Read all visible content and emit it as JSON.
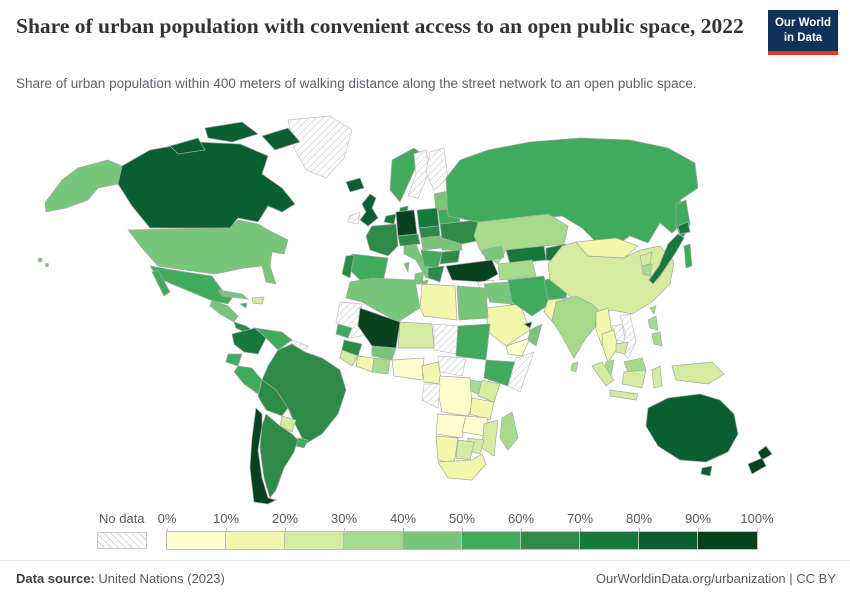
{
  "header": {
    "title": "Share of urban population with convenient access to an open public space, 2022",
    "subtitle": "Share of urban population within 400 meters of walking distance along the street network to an open public space.",
    "logo": {
      "line1": "Our World",
      "line2": "in Data",
      "bg_color": "#103159",
      "accent_color": "#e5362a"
    }
  },
  "footer": {
    "source_label": "Data source:",
    "source_value": " United Nations (2023)",
    "rights": "OurWorldinData.org/urbanization | CC BY"
  },
  "chart_data": {
    "type": "choropleth",
    "title": "Share of urban population with convenient access to an open public space, 2022",
    "unit": "%",
    "legend": {
      "no_data_label": "No data",
      "tick_labels": [
        "0%",
        "10%",
        "20%",
        "30%",
        "40%",
        "50%",
        "60%",
        "70%",
        "80%",
        "90%",
        "100%"
      ],
      "bin_colors": [
        "#fdfdce",
        "#f1f8ab",
        "#d4ec9f",
        "#a6db8c",
        "#78c679",
        "#41ab5d",
        "#2e8b47",
        "#15793b",
        "#0b5e31",
        "#07421f"
      ],
      "no_data_pattern": "gray-diagonal-hatch"
    },
    "countries": {
      "canada": {
        "label": "Canada",
        "value": "80-90%",
        "fill": "#0b5e31"
      },
      "alaska": {
        "label": "United States (Alaska)",
        "value": "40-50%",
        "fill": "#78c679"
      },
      "usa": {
        "label": "United States",
        "value": "40-50%",
        "fill": "#78c679"
      },
      "greenland": {
        "label": "Greenland",
        "value": "No data",
        "fill": "hatch"
      },
      "iceland": {
        "label": "Iceland",
        "value": "80-90%",
        "fill": "#0b5e31"
      },
      "mexico": {
        "label": "Mexico",
        "value": "50-60%",
        "fill": "#41ab5d"
      },
      "central-america": {
        "label": "Central America",
        "value": "40-50%",
        "fill": "#78c679"
      },
      "costa-rica-panama": {
        "label": "Costa Rica / Panama",
        "value": "60-70%",
        "fill": "#2e8b47"
      },
      "cuba": {
        "label": "Cuba",
        "value": "40-50%",
        "fill": "#78c679"
      },
      "hispaniola": {
        "label": "Haiti / Dominican Republic",
        "value": "20-30%",
        "fill": "#d4ec9f"
      },
      "jamaica": {
        "label": "Jamaica",
        "value": "50-60%",
        "fill": "#41ab5d"
      },
      "colombia": {
        "label": "Colombia",
        "value": "70-80%",
        "fill": "#15793b"
      },
      "venezuela": {
        "label": "Venezuela",
        "value": "50-60%",
        "fill": "#41ab5d"
      },
      "guyanas": {
        "label": "Guyana / Suriname",
        "value": "No data",
        "fill": "hatch"
      },
      "ecuador": {
        "label": "Ecuador",
        "value": "50-60%",
        "fill": "#41ab5d"
      },
      "peru": {
        "label": "Peru",
        "value": "50-60%",
        "fill": "#41ab5d"
      },
      "brazil": {
        "label": "Brazil",
        "value": "60-70%",
        "fill": "#2e8b47"
      },
      "bolivia": {
        "label": "Bolivia",
        "value": "60-70%",
        "fill": "#2e8b47"
      },
      "paraguay": {
        "label": "Paraguay",
        "value": "20-30%",
        "fill": "#d4ec9f"
      },
      "uruguay": {
        "label": "Uruguay",
        "value": "50-60%",
        "fill": "#41ab5d"
      },
      "argentina": {
        "label": "Argentina",
        "value": "60-70%",
        "fill": "#2e8b47"
      },
      "chile": {
        "label": "Chile",
        "value": "90-100%",
        "fill": "#07421f"
      },
      "uk": {
        "label": "United Kingdom",
        "value": "80-90%",
        "fill": "#0b5e31"
      },
      "ireland": {
        "label": "Ireland",
        "value": "No data",
        "fill": "hatch"
      },
      "norway": {
        "label": "Norway",
        "value": "50-60%",
        "fill": "#41ab5d"
      },
      "sweden": {
        "label": "Sweden",
        "value": "No data",
        "fill": "hatch"
      },
      "finland": {
        "label": "Finland",
        "value": "No data",
        "fill": "hatch"
      },
      "denmark": {
        "label": "Denmark",
        "value": "60-70%",
        "fill": "#2e8b47"
      },
      "baltics": {
        "label": "Baltic states",
        "value": "40-50%",
        "fill": "#78c679"
      },
      "belarus": {
        "label": "Belarus",
        "value": "50-60%",
        "fill": "#41ab5d"
      },
      "benelux": {
        "label": "Netherlands / Belgium",
        "value": "70-80%",
        "fill": "#15793b"
      },
      "germany": {
        "label": "Germany",
        "value": "90-100%",
        "fill": "#07421f"
      },
      "poland": {
        "label": "Poland",
        "value": "70-80%",
        "fill": "#15793b"
      },
      "france": {
        "label": "France",
        "value": "60-70%",
        "fill": "#2e8b47"
      },
      "spain": {
        "label": "Spain",
        "value": "50-60%",
        "fill": "#41ab5d"
      },
      "portugal": {
        "label": "Portugal",
        "value": "60-70%",
        "fill": "#2e8b47"
      },
      "alpine": {
        "label": "Switzerland / Austria",
        "value": "60-70%",
        "fill": "#2e8b47"
      },
      "czech-slovakia": {
        "label": "Czechia / Slovakia",
        "value": "60-70%",
        "fill": "#2e8b47"
      },
      "italy": {
        "label": "Italy",
        "value": "40-50%",
        "fill": "#78c679"
      },
      "hungary": {
        "label": "Hungary",
        "value": "40-50%",
        "fill": "#78c679"
      },
      "romania": {
        "label": "Romania",
        "value": "40-50%",
        "fill": "#78c679"
      },
      "balkans": {
        "label": "Balkans",
        "value": "50-60%",
        "fill": "#41ab5d"
      },
      "greece": {
        "label": "Greece",
        "value": "60-70%",
        "fill": "#2e8b47"
      },
      "bulgaria": {
        "label": "Bulgaria",
        "value": "60-70%",
        "fill": "#2e8b47"
      },
      "ukraine": {
        "label": "Ukraine",
        "value": "60-70%",
        "fill": "#2e8b47"
      },
      "russia": {
        "label": "Russia",
        "value": "50-60%",
        "fill": "#41ab5d"
      },
      "turkey": {
        "label": "Turkey",
        "value": "90-100%",
        "fill": "#07421f"
      },
      "caucasus": {
        "label": "Caucasus",
        "value": "40-50%",
        "fill": "#78c679"
      },
      "syria": {
        "label": "Syria",
        "value": "No data",
        "fill": "hatch"
      },
      "israel": {
        "label": "Israel",
        "value": "90-100%",
        "fill": "#07421f"
      },
      "jordan": {
        "label": "Jordan",
        "value": "30-40%",
        "fill": "#a6db8c"
      },
      "iraq": {
        "label": "Iraq",
        "value": "40-50%",
        "fill": "#78c679"
      },
      "saudi": {
        "label": "Saudi Arabia",
        "value": "10-20%",
        "fill": "#f1f8ab"
      },
      "yemen": {
        "label": "Yemen",
        "value": "0-10%",
        "fill": "#fdfdce"
      },
      "oman": {
        "label": "Oman",
        "value": "40-50%",
        "fill": "#78c679"
      },
      "uae": {
        "label": "United Arab Emirates",
        "value": "90-100%",
        "fill": "#07421f"
      },
      "kuwait": {
        "label": "Kuwait",
        "value": "60-70%",
        "fill": "#2e8b47"
      },
      "iran": {
        "label": "Iran",
        "value": "50-60%",
        "fill": "#41ab5d"
      },
      "afghanistan": {
        "label": "Afghanistan",
        "value": "50-60%",
        "fill": "#41ab5d"
      },
      "pakistan": {
        "label": "Pakistan",
        "value": "10-20%",
        "fill": "#f1f8ab"
      },
      "turkmenistan": {
        "label": "Turkmenistan",
        "value": "30-40%",
        "fill": "#a6db8c"
      },
      "uzbekistan": {
        "label": "Uzbekistan",
        "value": "70-80%",
        "fill": "#15793b"
      },
      "kyrgyz-tajik": {
        "label": "Kyrgyzstan / Tajikistan",
        "value": "70-80%",
        "fill": "#15793b"
      },
      "kazakhstan": {
        "label": "Kazakhstan",
        "value": "30-40%",
        "fill": "#a6db8c"
      },
      "mongolia": {
        "label": "Mongolia",
        "value": "10-20%",
        "fill": "#f1f8ab"
      },
      "china": {
        "label": "China",
        "value": "20-30%",
        "fill": "#d4ec9f"
      },
      "nkorea": {
        "label": "North Korea",
        "value": "20-30%",
        "fill": "#d4ec9f"
      },
      "skorea": {
        "label": "South Korea",
        "value": "30-40%",
        "fill": "#a6db8c"
      },
      "japan": {
        "label": "Japan",
        "value": "70-80%",
        "fill": "#15793b"
      },
      "taiwan": {
        "label": "Taiwan",
        "value": "30-40%",
        "fill": "#a6db8c"
      },
      "india": {
        "label": "India",
        "value": "30-40%",
        "fill": "#a6db8c"
      },
      "bangladesh": {
        "label": "Bangladesh",
        "value": "60-70%",
        "fill": "#2e8b47"
      },
      "srilanka": {
        "label": "Sri Lanka",
        "value": "30-40%",
        "fill": "#a6db8c"
      },
      "myanmar": {
        "label": "Myanmar",
        "value": "10-20%",
        "fill": "#f1f8ab"
      },
      "thailand": {
        "label": "Thailand",
        "value": "10-20%",
        "fill": "#f1f8ab"
      },
      "laos": {
        "label": "Laos",
        "value": "No data",
        "fill": "hatch"
      },
      "vietnam": {
        "label": "Vietnam",
        "value": "No data",
        "fill": "hatch"
      },
      "cambodia": {
        "label": "Cambodia",
        "value": "20-30%",
        "fill": "#d4ec9f"
      },
      "malaysia": {
        "label": "Malaysia",
        "value": "30-40%",
        "fill": "#a6db8c"
      },
      "indonesia": {
        "label": "Indonesia",
        "value": "20-30%",
        "fill": "#d4ec9f"
      },
      "philippines": {
        "label": "Philippines",
        "value": "30-40%",
        "fill": "#a6db8c"
      },
      "png": {
        "label": "New Guinea",
        "value": "20-30%",
        "fill": "#d4ec9f"
      },
      "australia": {
        "label": "Australia",
        "value": "80-90%",
        "fill": "#0b5e31"
      },
      "nz": {
        "label": "New Zealand",
        "value": "90-100%",
        "fill": "#07421f"
      },
      "morocco": {
        "label": "Morocco",
        "value": "40-50%",
        "fill": "#78c679"
      },
      "wsahara-mauritania": {
        "label": "W. Sahara / Mauritania",
        "value": "No data",
        "fill": "hatch"
      },
      "algeria": {
        "label": "Algeria",
        "value": "40-50%",
        "fill": "#78c679"
      },
      "tunisia": {
        "label": "Tunisia",
        "value": "40-50%",
        "fill": "#78c679"
      },
      "libya": {
        "label": "Libya",
        "value": "10-20%",
        "fill": "#f1f8ab"
      },
      "egypt": {
        "label": "Egypt",
        "value": "40-50%",
        "fill": "#78c679"
      },
      "mali": {
        "label": "Mali",
        "value": "90-100%",
        "fill": "#07421f"
      },
      "niger": {
        "label": "Niger",
        "value": "20-30%",
        "fill": "#d4ec9f"
      },
      "chad": {
        "label": "Chad",
        "value": "No data",
        "fill": "hatch"
      },
      "sudan": {
        "label": "Sudan",
        "value": "50-60%",
        "fill": "#41ab5d"
      },
      "senegal": {
        "label": "Senegal",
        "value": "50-60%",
        "fill": "#41ab5d"
      },
      "guinea": {
        "label": "Guinea",
        "value": "60-70%",
        "fill": "#2e8b47"
      },
      "sierra-liberia": {
        "label": "Sierra Leone / Liberia",
        "value": "20-30%",
        "fill": "#d4ec9f"
      },
      "ivorycoast": {
        "label": "Côte d'Ivoire",
        "value": "10-20%",
        "fill": "#f1f8ab"
      },
      "ghana-benin": {
        "label": "Ghana / Togo / Benin",
        "value": "30-40%",
        "fill": "#a6db8c"
      },
      "burkina": {
        "label": "Burkina Faso",
        "value": "40-50%",
        "fill": "#78c679"
      },
      "nigeria": {
        "label": "Nigeria",
        "value": "0-10%",
        "fill": "#fdfdce"
      },
      "cameroon": {
        "label": "Cameroon",
        "value": "10-20%",
        "fill": "#f1f8ab"
      },
      "car": {
        "label": "Central African Republic",
        "value": "No data",
        "fill": "hatch"
      },
      "ethiopia": {
        "label": "Ethiopia",
        "value": "50-60%",
        "fill": "#41ab5d"
      },
      "somalia": {
        "label": "Somalia",
        "value": "No data",
        "fill": "hatch"
      },
      "kenya": {
        "label": "Kenya",
        "value": "20-30%",
        "fill": "#d4ec9f"
      },
      "uganda": {
        "label": "Uganda",
        "value": "30-40%",
        "fill": "#a6db8c"
      },
      "drc": {
        "label": "Democratic Republic of Congo",
        "value": "0-10%",
        "fill": "#fdfdce"
      },
      "congo-gabon": {
        "label": "Congo / Gabon",
        "value": "No data",
        "fill": "hatch"
      },
      "tanzania": {
        "label": "Tanzania",
        "value": "10-20%",
        "fill": "#f1f8ab"
      },
      "angola": {
        "label": "Angola",
        "value": "0-10%",
        "fill": "#fdfdce"
      },
      "zambia": {
        "label": "Zambia",
        "value": "0-10%",
        "fill": "#fdfdce"
      },
      "mozambique": {
        "label": "Mozambique",
        "value": "20-30%",
        "fill": "#d4ec9f"
      },
      "zimbabwe": {
        "label": "Zimbabwe",
        "value": "20-30%",
        "fill": "#d4ec9f"
      },
      "namibia": {
        "label": "Namibia",
        "value": "10-20%",
        "fill": "#f1f8ab"
      },
      "botswana": {
        "label": "Botswana",
        "value": "20-30%",
        "fill": "#d4ec9f"
      },
      "southafrica": {
        "label": "South Africa",
        "value": "10-20%",
        "fill": "#f1f8ab"
      },
      "madagascar": {
        "label": "Madagascar",
        "value": "30-40%",
        "fill": "#a6db8c"
      }
    }
  }
}
